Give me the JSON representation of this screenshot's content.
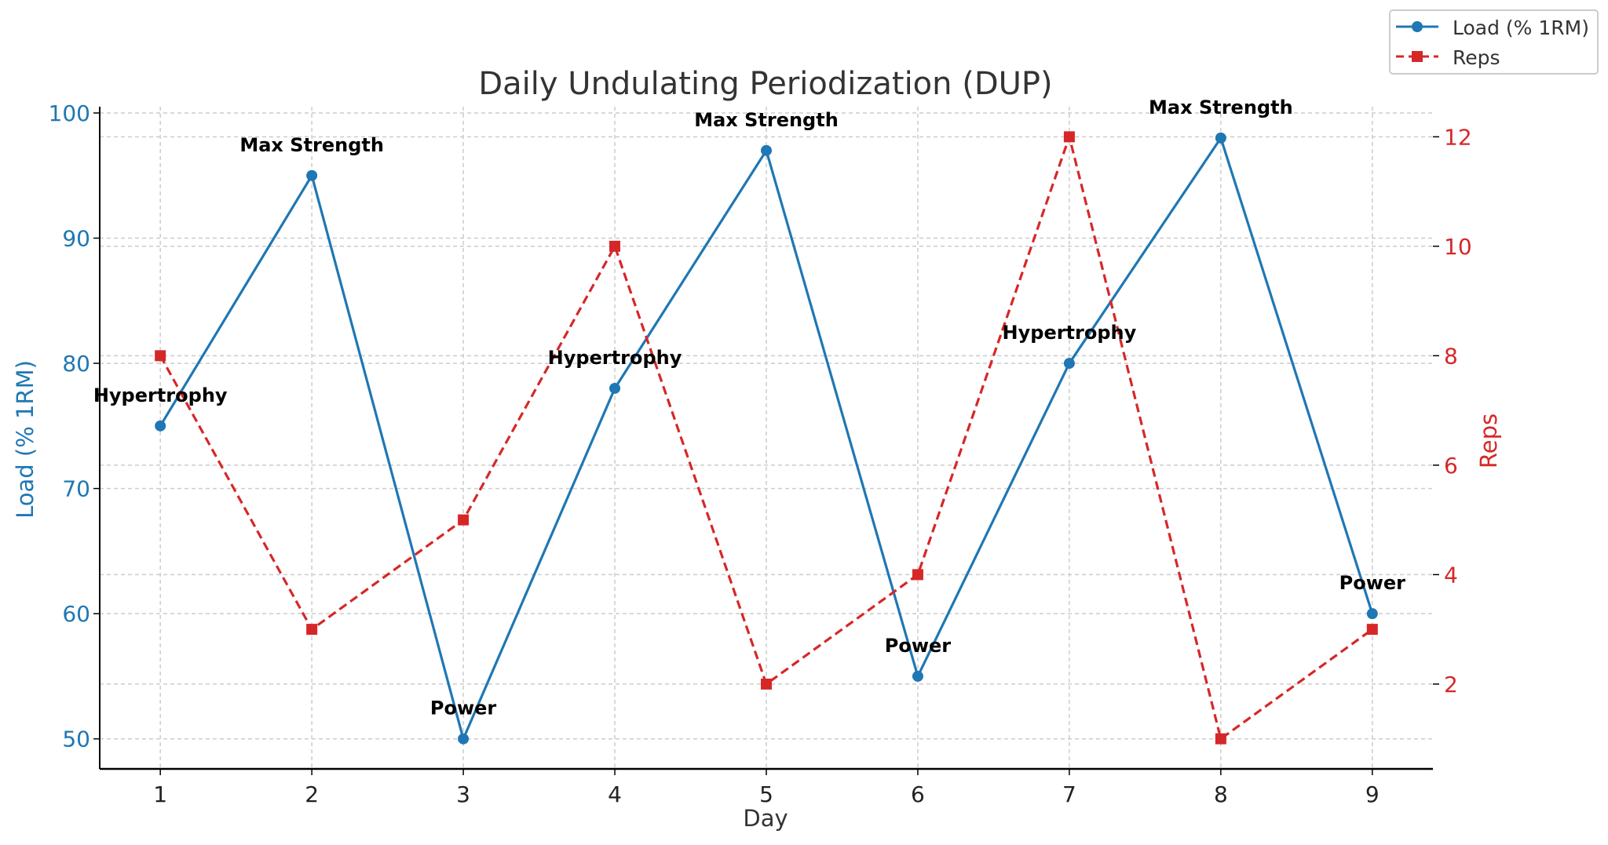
{
  "chart_data": {
    "type": "line",
    "title": "Daily Undulating Periodization (DUP)",
    "xlabel": "Day",
    "ylabel_left": "Load (% 1RM)",
    "ylabel_right": "Reps",
    "x": [
      1,
      2,
      3,
      4,
      5,
      6,
      7,
      8,
      9
    ],
    "xlim": [
      0.6,
      9.4
    ],
    "ylim_left": [
      47.6,
      100.5
    ],
    "ylim_right": [
      0.45,
      12.55
    ],
    "yticks_left": [
      50,
      60,
      70,
      80,
      90,
      100
    ],
    "yticks_right": [
      2,
      4,
      6,
      8,
      10,
      12
    ],
    "grid": true,
    "legend_position": "top-right",
    "series": [
      {
        "name": "Load (% 1RM)",
        "axis": "left",
        "color": "#1f77b4",
        "style": "solid",
        "marker": "circle",
        "values": [
          75,
          95,
          50,
          78,
          97,
          55,
          80,
          98,
          60
        ]
      },
      {
        "name": "Reps",
        "axis": "right",
        "color": "#d62728",
        "style": "dashed",
        "marker": "square",
        "values": [
          8,
          3,
          5,
          10,
          2,
          4,
          12,
          1,
          3
        ]
      }
    ],
    "annotations": [
      "Hypertrophy",
      "Max Strength",
      "Power",
      "Hypertrophy",
      "Max Strength",
      "Power",
      "Hypertrophy",
      "Max Strength",
      "Power"
    ]
  }
}
